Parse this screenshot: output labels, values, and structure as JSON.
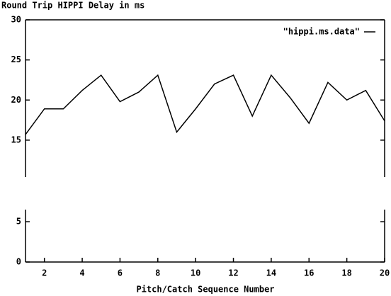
{
  "chart_data": [
    {
      "type": "line",
      "title": "Round Trip HIPPI Delay in ms",
      "x": [
        1,
        2,
        3,
        4,
        5,
        6,
        7,
        8,
        9,
        10,
        11,
        12,
        13,
        14,
        15,
        16,
        17,
        18,
        19,
        20
      ],
      "series": [
        {
          "name": "\"hippi.ms.data\"",
          "color": "#000000",
          "values": [
            15.7,
            18.9,
            18.9,
            21.2,
            23.1,
            19.8,
            21,
            23.1,
            16,
            18.9,
            22,
            23.1,
            18,
            23.1,
            20.3,
            17.1,
            22.2,
            20,
            21.2,
            17.4
          ]
        }
      ],
      "xlim": [
        1,
        20
      ],
      "ylim": [
        10.4,
        30
      ],
      "yticks": [
        15,
        20,
        25,
        30
      ],
      "legend": "upper right"
    },
    {
      "type": "line",
      "x_label": "Pitch/Catch Sequence Number",
      "series": [],
      "xlim": [
        1,
        20
      ],
      "xticks": [
        2,
        4,
        6,
        8,
        10,
        12,
        14,
        16,
        18,
        20
      ],
      "ylim": [
        0,
        6.5
      ],
      "yticks": [
        0,
        5
      ]
    }
  ]
}
